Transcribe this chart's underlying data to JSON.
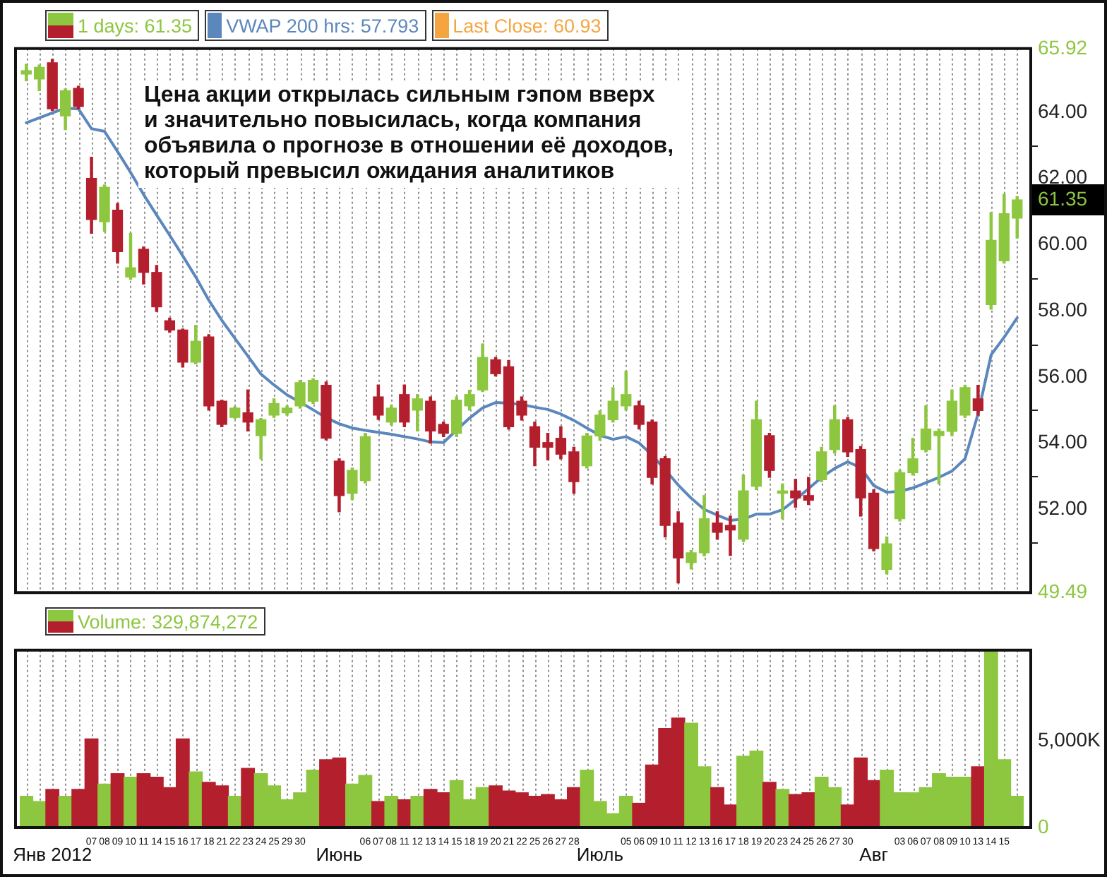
{
  "chart_data": [
    {
      "type": "candlestick",
      "categories": [
        null,
        null,
        null,
        null,
        null,
        null,
        null,
        null,
        null,
        null,
        null,
        null,
        null,
        null,
        null,
        null,
        null,
        null,
        null,
        null,
        null,
        null,
        null,
        null,
        null,
        null,
        null,
        null,
        null,
        null,
        null,
        null,
        null,
        null,
        null,
        null,
        null,
        null,
        null,
        null,
        null,
        null,
        null,
        null,
        null,
        null,
        null,
        null,
        null,
        null,
        null,
        null,
        null,
        null,
        null,
        null,
        null,
        null,
        null,
        null,
        null,
        null,
        null,
        null,
        null,
        null,
        null,
        null,
        null,
        null,
        null,
        null,
        null,
        null,
        null,
        null,
        null
      ],
      "series": [
        {
          "name": "1 days: 61.35",
          "ohlc": [
            [
              65.15,
              65.45,
              64.95,
              65.25
            ],
            [
              65.0,
              65.42,
              64.65,
              65.35
            ],
            [
              65.49,
              65.6,
              64.05,
              64.1
            ],
            [
              63.89,
              64.7,
              63.47,
              64.65
            ],
            [
              64.72,
              64.78,
              64.1,
              64.17
            ],
            [
              62.0,
              62.64,
              60.34,
              60.76
            ],
            [
              60.69,
              61.8,
              60.4,
              61.73
            ],
            [
              61.04,
              61.24,
              59.44,
              59.79
            ],
            [
              59.02,
              60.34,
              58.95,
              59.3
            ],
            [
              59.86,
              59.93,
              58.81,
              59.16
            ],
            [
              59.16,
              59.37,
              57.98,
              58.12
            ],
            [
              57.7,
              57.78,
              57.35,
              57.42
            ],
            [
              57.42,
              57.45,
              56.3,
              56.45
            ],
            [
              56.45,
              57.56,
              56.4,
              57.08
            ],
            [
              57.21,
              57.28,
              55.0,
              55.13
            ],
            [
              55.27,
              55.3,
              54.5,
              54.57
            ],
            [
              54.78,
              55.1,
              54.75,
              55.06
            ],
            [
              54.92,
              55.61,
              54.37,
              54.64
            ],
            [
              54.23,
              54.75,
              53.53,
              54.71
            ],
            [
              54.85,
              55.34,
              54.78,
              55.2
            ],
            [
              54.92,
              55.13,
              54.85,
              55.06
            ],
            [
              55.13,
              55.9,
              55.06,
              55.83
            ],
            [
              55.27,
              55.95,
              55.2,
              55.9
            ],
            [
              55.75,
              55.85,
              54.1,
              54.15
            ],
            [
              53.46,
              53.53,
              51.93,
              52.42
            ],
            [
              52.49,
              53.25,
              52.3,
              53.18
            ],
            [
              52.87,
              54.3,
              52.8,
              54.2
            ],
            [
              55.4,
              55.76,
              54.72,
              54.85
            ],
            [
              54.64,
              55.15,
              54.55,
              55.06
            ],
            [
              55.47,
              55.76,
              54.5,
              54.64
            ],
            [
              55.0,
              55.47,
              54.37,
              55.34
            ],
            [
              55.27,
              55.4,
              54.0,
              54.37
            ],
            [
              54.57,
              54.64,
              54.2,
              54.3
            ],
            [
              54.3,
              55.4,
              54.2,
              55.3
            ],
            [
              55.13,
              55.6,
              55.0,
              55.47
            ],
            [
              55.61,
              57.0,
              55.56,
              56.59
            ],
            [
              56.52,
              56.59,
              56.03,
              56.1
            ],
            [
              56.31,
              56.5,
              54.43,
              54.5
            ],
            [
              55.27,
              55.4,
              54.7,
              54.85
            ],
            [
              54.5,
              54.64,
              53.32,
              53.88
            ],
            [
              54.02,
              54.3,
              53.5,
              53.88
            ],
            [
              54.15,
              54.5,
              53.53,
              53.67
            ],
            [
              53.74,
              53.88,
              52.49,
              52.84
            ],
            [
              53.32,
              54.3,
              53.25,
              54.22
            ],
            [
              54.22,
              54.98,
              54.09,
              54.85
            ],
            [
              54.71,
              55.68,
              54.64,
              55.27
            ],
            [
              55.13,
              56.17,
              55.0,
              55.47
            ],
            [
              55.13,
              55.27,
              54.43,
              54.57
            ],
            [
              54.64,
              54.7,
              52.77,
              52.97
            ],
            [
              53.53,
              53.6,
              51.17,
              51.52
            ],
            [
              51.59,
              51.93,
              49.78,
              50.54
            ],
            [
              50.4,
              50.76,
              50.2,
              50.69
            ],
            [
              50.69,
              52.42,
              50.6,
              51.72
            ],
            [
              51.59,
              51.93,
              51.1,
              51.31
            ],
            [
              51.52,
              51.8,
              50.61,
              51.38
            ],
            [
              51.1,
              53.04,
              51.03,
              52.56
            ],
            [
              52.7,
              55.27,
              52.6,
              54.71
            ],
            [
              54.23,
              54.3,
              52.97,
              53.18
            ],
            [
              52.49,
              52.77,
              51.72,
              52.56
            ],
            [
              52.56,
              52.91,
              52.07,
              52.35
            ],
            [
              52.42,
              52.97,
              52.15,
              52.28
            ],
            [
              52.9,
              53.88,
              52.84,
              53.74
            ],
            [
              53.81,
              55.13,
              53.7,
              54.71
            ],
            [
              54.71,
              54.78,
              53.6,
              53.74
            ],
            [
              53.81,
              53.9,
              51.8,
              52.35
            ],
            [
              52.49,
              52.6,
              50.75,
              50.82
            ],
            [
              50.19,
              51.17,
              50.05,
              50.96
            ],
            [
              51.72,
              53.18,
              51.65,
              53.11
            ],
            [
              53.11,
              54.15,
              53.04,
              53.53
            ],
            [
              53.81,
              55.13,
              53.74,
              54.43
            ],
            [
              54.23,
              54.43,
              52.77,
              54.36
            ],
            [
              54.36,
              55.61,
              54.23,
              55.27
            ],
            [
              54.85,
              55.75,
              54.78,
              55.68
            ],
            [
              55.34,
              55.75,
              54.85,
              54.99
            ],
            [
              58.19,
              60.97,
              58.05,
              60.13
            ],
            [
              59.51,
              61.52,
              59.44,
              60.93
            ],
            [
              60.8,
              61.45,
              60.2,
              61.35
            ]
          ],
          "colors": [
            "#8dc63f",
            "#8dc63f",
            "#b41f2d",
            "#8dc63f",
            "#b41f2d",
            "#b41f2d",
            "#8dc63f",
            "#b41f2d",
            "#8dc63f",
            "#b41f2d",
            "#b41f2d",
            "#b41f2d",
            "#b41f2d",
            "#8dc63f",
            "#b41f2d",
            "#b41f2d",
            "#8dc63f",
            "#b41f2d",
            "#8dc63f",
            "#8dc63f",
            "#8dc63f",
            "#8dc63f",
            "#8dc63f",
            "#b41f2d",
            "#b41f2d",
            "#8dc63f",
            "#8dc63f",
            "#b41f2d",
            "#8dc63f",
            "#b41f2d",
            "#8dc63f",
            "#b41f2d",
            "#b41f2d",
            "#8dc63f",
            "#8dc63f",
            "#8dc63f",
            "#b41f2d",
            "#b41f2d",
            "#b41f2d",
            "#b41f2d",
            "#b41f2d",
            "#b41f2d",
            "#b41f2d",
            "#8dc63f",
            "#8dc63f",
            "#8dc63f",
            "#8dc63f",
            "#b41f2d",
            "#b41f2d",
            "#b41f2d",
            "#b41f2d",
            "#8dc63f",
            "#8dc63f",
            "#b41f2d",
            "#b41f2d",
            "#8dc63f",
            "#8dc63f",
            "#b41f2d",
            "#8dc63f",
            "#b41f2d",
            "#b41f2d",
            "#8dc63f",
            "#8dc63f",
            "#b41f2d",
            "#b41f2d",
            "#b41f2d",
            "#8dc63f",
            "#8dc63f",
            "#8dc63f",
            "#8dc63f",
            "#8dc63f",
            "#8dc63f",
            "#8dc63f",
            "#b41f2d",
            "#8dc63f",
            "#8dc63f",
            "#8dc63f"
          ]
        },
        {
          "name": "VWAP 200 hrs: 57.793",
          "type": "line",
          "color": "#5b87bd",
          "values": [
            63.68,
            63.83,
            63.98,
            64.12,
            64.1,
            63.5,
            63.42,
            62.81,
            62.18,
            61.51,
            60.89,
            60.28,
            59.66,
            59.02,
            58.32,
            57.71,
            57.17,
            56.63,
            56.09,
            55.76,
            55.46,
            55.24,
            55.01,
            54.77,
            54.59,
            54.46,
            54.39,
            54.33,
            54.27,
            54.2,
            54.13,
            54.04,
            54.02,
            54.4,
            54.76,
            55.07,
            55.23,
            55.21,
            55.17,
            55.09,
            55.02,
            54.88,
            54.69,
            54.46,
            54.24,
            54.12,
            54.2,
            54.01,
            53.64,
            53.2,
            52.74,
            52.34,
            52.0,
            51.83,
            51.67,
            51.71,
            51.86,
            51.86,
            51.99,
            52.3,
            52.63,
            52.97,
            53.24,
            53.44,
            53.26,
            52.72,
            52.52,
            52.55,
            52.65,
            52.81,
            52.97,
            53.16,
            53.53,
            54.89,
            56.67,
            57.2,
            57.79
          ]
        },
        {
          "name": "Last Close: 60.93",
          "type": "line",
          "color": "#f5a540",
          "values": [
            null,
            null,
            null,
            null,
            null,
            null,
            null,
            null,
            null,
            null,
            null,
            null,
            null,
            null,
            null,
            null,
            null,
            null,
            null,
            null,
            null,
            null,
            null,
            null,
            null,
            null,
            null,
            null,
            null,
            null,
            null,
            null,
            null,
            null,
            null,
            null,
            null,
            null,
            null,
            null,
            null,
            null,
            null,
            null,
            null,
            null,
            null,
            null,
            null,
            null,
            null,
            null,
            null,
            null,
            null,
            null,
            null,
            null,
            null,
            null,
            null,
            null,
            null,
            null,
            null,
            null,
            null,
            null,
            null,
            null,
            null,
            null,
            null,
            null,
            null,
            null,
            null
          ]
        }
      ],
      "ylim": [
        49.49,
        65.92
      ],
      "yticks": [
        {
          "value": 49.49,
          "label": "49.49"
        },
        {
          "value": 51,
          "label": null
        },
        {
          "value": 52,
          "label": "52.00"
        },
        {
          "value": 53,
          "label": null
        },
        {
          "value": 54,
          "label": "54.00"
        },
        {
          "value": 55,
          "label": null
        },
        {
          "value": 56,
          "label": "56.00"
        },
        {
          "value": 57,
          "label": null
        },
        {
          "value": 58,
          "label": "58.00"
        },
        {
          "value": 59,
          "label": null
        },
        {
          "value": 60,
          "label": "60.00"
        },
        {
          "value": 61.35,
          "label": "61.35"
        },
        {
          "value": 62,
          "label": "62.00"
        },
        {
          "value": 63,
          "label": null
        },
        {
          "value": 64,
          "label": "64.00"
        },
        {
          "value": 65.92,
          "label": "65.92"
        }
      ],
      "grid": "x",
      "legend": "top left",
      "tick_labels": "y",
      "annotations": [
        "Цена акции открылась сильным гэпом вверх\nи значительно повысилась, когда компания\nобъявила о прогнозе в отношении её доходов,\nкоторый превысил ожидания аналитиков"
      ]
    },
    {
      "type": "bar",
      "categories": [
        null,
        null,
        "Янв 2012",
        null,
        null,
        "07",
        "08",
        "09",
        "10",
        "11",
        "14",
        "15",
        "16",
        "17",
        "18",
        "21",
        "22",
        "23",
        "24",
        "25",
        "29",
        "30",
        null,
        null,
        "Июнь",
        null,
        "06",
        "07",
        "08",
        "11",
        "12",
        "13",
        "14",
        "15",
        "18",
        "19",
        "20",
        "21",
        "22",
        "25",
        "26",
        "27",
        "28",
        null,
        "Июль",
        null,
        "05",
        "06",
        "09",
        "10",
        "11",
        "12",
        "13",
        "16",
        "17",
        "18",
        "19",
        "20",
        "23",
        "24",
        "25",
        "26",
        "27",
        "30",
        null,
        "Авг",
        null,
        "03",
        "06",
        "07",
        "08",
        "09",
        "10",
        "13",
        "14",
        "15",
        null
      ],
      "series": [
        {
          "name": "Volume: 329,874,272",
          "values": [
            1800,
            1500,
            2200,
            1800,
            2200,
            5100,
            2500,
            3100,
            2900,
            3100,
            2900,
            2300,
            5100,
            3200,
            2600,
            2400,
            1800,
            3400,
            3100,
            2400,
            1600,
            2000,
            3300,
            3900,
            4000,
            2500,
            3000,
            1500,
            1800,
            1600,
            1800,
            2200,
            2000,
            2700,
            1600,
            2300,
            2400,
            2100,
            2000,
            1800,
            1900,
            1600,
            2300,
            3300,
            1500,
            800,
            1800,
            1400,
            3600,
            5700,
            6300,
            6000,
            3500,
            2300,
            1300,
            4100,
            4400,
            2600,
            2200,
            1900,
            2000,
            2900,
            2300,
            1300,
            4000,
            2700,
            3300,
            2000,
            2000,
            2300,
            3100,
            2900,
            2900,
            3500,
            10200,
            3900,
            1800
          ],
          "colors": [
            "#8dc63f",
            "#8dc63f",
            "#b41f2d",
            "#8dc63f",
            "#b41f2d",
            "#b41f2d",
            "#8dc63f",
            "#b41f2d",
            "#8dc63f",
            "#b41f2d",
            "#b41f2d",
            "#b41f2d",
            "#b41f2d",
            "#8dc63f",
            "#b41f2d",
            "#b41f2d",
            "#8dc63f",
            "#b41f2d",
            "#8dc63f",
            "#8dc63f",
            "#8dc63f",
            "#8dc63f",
            "#8dc63f",
            "#b41f2d",
            "#b41f2d",
            "#8dc63f",
            "#8dc63f",
            "#b41f2d",
            "#8dc63f",
            "#b41f2d",
            "#8dc63f",
            "#b41f2d",
            "#b41f2d",
            "#8dc63f",
            "#8dc63f",
            "#8dc63f",
            "#b41f2d",
            "#b41f2d",
            "#b41f2d",
            "#b41f2d",
            "#b41f2d",
            "#b41f2d",
            "#b41f2d",
            "#8dc63f",
            "#8dc63f",
            "#8dc63f",
            "#8dc63f",
            "#b41f2d",
            "#b41f2d",
            "#b41f2d",
            "#b41f2d",
            "#8dc63f",
            "#8dc63f",
            "#b41f2d",
            "#b41f2d",
            "#8dc63f",
            "#8dc63f",
            "#b41f2d",
            "#8dc63f",
            "#b41f2d",
            "#b41f2d",
            "#8dc63f",
            "#8dc63f",
            "#b41f2d",
            "#b41f2d",
            "#b41f2d",
            "#8dc63f",
            "#8dc63f",
            "#8dc63f",
            "#8dc63f",
            "#8dc63f",
            "#8dc63f",
            "#8dc63f",
            "#b41f2d",
            "#8dc63f",
            "#8dc63f",
            "#8dc63f"
          ]
        }
      ],
      "ylim": [
        0,
        10200
      ],
      "yticks": [
        0,
        {
          "value": 5000,
          "label": "5,000K"
        }
      ],
      "grid": "x",
      "legend": "top left"
    }
  ]
}
